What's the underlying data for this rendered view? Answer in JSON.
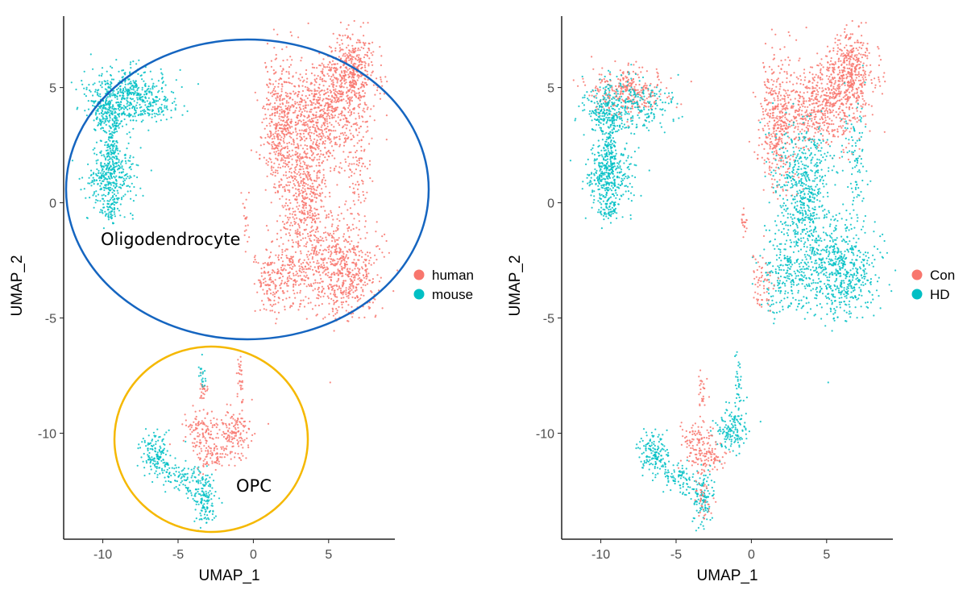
{
  "colors": {
    "a": "#F8766D",
    "b": "#00BFC4",
    "oligo_circle": "#1565C0",
    "opc_circle": "#F5B800"
  },
  "chart_data": [
    {
      "type": "scatter",
      "xlabel": "UMAP_1",
      "ylabel": "UMAP_2",
      "xlim": [
        -12.6,
        9.4
      ],
      "ylim": [
        -14.6,
        8.1
      ],
      "xticks": [
        -10,
        -5,
        0,
        5
      ],
      "yticks": [
        5,
        0,
        -5,
        -10
      ],
      "legend": [
        {
          "label": "human",
          "group": "a"
        },
        {
          "label": "mouse",
          "group": "b"
        }
      ],
      "legend_position": "right",
      "annotations": {
        "oligo": "Oligodendrocyte",
        "opc": "OPC"
      },
      "clusters": [
        [
          "b",
          -8.3,
          4.6,
          1.4,
          0.6,
          500
        ],
        [
          "b",
          -9.7,
          3.8,
          0.6,
          0.5,
          150
        ],
        [
          "b",
          -9.4,
          2.4,
          0.3,
          0.6,
          100
        ],
        [
          "b",
          -9.5,
          1.0,
          0.8,
          0.7,
          350
        ],
        [
          "b",
          -9.4,
          -0.3,
          0.3,
          0.3,
          40
        ],
        [
          "b",
          -6.5,
          4.2,
          0.7,
          0.4,
          40
        ],
        [
          "a",
          6.5,
          5.8,
          0.8,
          0.8,
          400
        ],
        [
          "a",
          4.5,
          4.0,
          1.5,
          1.0,
          700
        ],
        [
          "a",
          1.8,
          3.5,
          0.6,
          1.4,
          350
        ],
        [
          "a",
          3.5,
          1.5,
          1.0,
          1.0,
          300
        ],
        [
          "a",
          3.5,
          -0.8,
          0.9,
          1.0,
          300
        ],
        [
          "a",
          5.8,
          -3.0,
          1.2,
          1.0,
          600
        ],
        [
          "a",
          2.2,
          -3.2,
          0.8,
          0.8,
          200
        ],
        [
          "a",
          0.8,
          -3.5,
          0.4,
          0.8,
          60
        ],
        [
          "a",
          -0.5,
          -0.8,
          0.15,
          0.5,
          20
        ],
        [
          "a",
          7.0,
          1.5,
          0.4,
          1.5,
          100
        ],
        [
          "a",
          -1.3,
          -10.0,
          0.6,
          0.5,
          150
        ],
        [
          "a",
          -3.5,
          -9.8,
          0.6,
          0.4,
          100
        ],
        [
          "a",
          -2.8,
          -11.0,
          0.6,
          0.3,
          80
        ],
        [
          "a",
          -0.9,
          -7.8,
          0.1,
          0.6,
          30
        ],
        [
          "a",
          -3.3,
          -8.2,
          0.15,
          0.4,
          25
        ],
        [
          "b",
          -6.4,
          -11.0,
          0.5,
          0.5,
          150
        ],
        [
          "b",
          -5.0,
          -11.8,
          0.6,
          0.3,
          60
        ],
        [
          "b",
          -3.2,
          -12.8,
          0.4,
          0.6,
          150
        ],
        [
          "b",
          -3.4,
          -7.5,
          0.1,
          0.4,
          20
        ],
        [
          "b",
          -4.4,
          -12.3,
          0.2,
          0.3,
          20
        ]
      ]
    },
    {
      "type": "scatter",
      "xlabel": "UMAP_1",
      "ylabel": "UMAP_2",
      "xlim": [
        -12.6,
        9.4
      ],
      "ylim": [
        -14.6,
        8.1
      ],
      "xticks": [
        -10,
        -5,
        0,
        5
      ],
      "yticks": [
        5,
        0,
        -5,
        -10
      ],
      "legend": [
        {
          "label": "Con",
          "group": "a"
        },
        {
          "label": "HD",
          "group": "b"
        }
      ],
      "legend_position": "right",
      "clusters": [
        [
          "a",
          -8.3,
          4.8,
          1.3,
          0.5,
          300
        ],
        [
          "b",
          -8.3,
          4.2,
          1.4,
          0.7,
          250
        ],
        [
          "b",
          -9.7,
          3.8,
          0.6,
          0.5,
          150
        ],
        [
          "b",
          -9.4,
          2.4,
          0.3,
          0.6,
          100
        ],
        [
          "b",
          -9.5,
          1.0,
          0.8,
          0.7,
          350
        ],
        [
          "b",
          -9.4,
          -0.3,
          0.3,
          0.3,
          40
        ],
        [
          "b",
          -6.5,
          4.2,
          0.7,
          0.4,
          40
        ],
        [
          "a",
          6.5,
          5.8,
          0.8,
          0.8,
          400
        ],
        [
          "a",
          4.5,
          4.2,
          1.5,
          0.9,
          600
        ],
        [
          "a",
          1.8,
          3.5,
          0.6,
          1.4,
          350
        ],
        [
          "b",
          3.5,
          1.5,
          1.0,
          1.0,
          300
        ],
        [
          "b",
          3.5,
          -0.8,
          0.9,
          1.0,
          300
        ],
        [
          "b",
          5.8,
          -3.0,
          1.2,
          1.0,
          600
        ],
        [
          "b",
          2.2,
          -3.2,
          0.8,
          0.8,
          200
        ],
        [
          "a",
          0.8,
          -3.5,
          0.4,
          0.8,
          60
        ],
        [
          "a",
          -0.5,
          -0.8,
          0.15,
          0.5,
          20
        ],
        [
          "b",
          7.0,
          1.5,
          0.4,
          1.5,
          100
        ],
        [
          "b",
          -1.3,
          -9.9,
          0.5,
          0.5,
          150
        ],
        [
          "a",
          -3.6,
          -10.3,
          0.6,
          0.5,
          100
        ],
        [
          "a",
          -2.8,
          -11.0,
          0.6,
          0.3,
          80
        ],
        [
          "b",
          -0.9,
          -7.8,
          0.1,
          0.6,
          30
        ],
        [
          "a",
          -3.3,
          -8.2,
          0.15,
          0.4,
          25
        ],
        [
          "b",
          -6.4,
          -11.0,
          0.5,
          0.5,
          150
        ],
        [
          "b",
          -5.0,
          -11.8,
          0.6,
          0.3,
          60
        ],
        [
          "b",
          -3.2,
          -12.8,
          0.4,
          0.6,
          120
        ],
        [
          "a",
          -3.2,
          -12.8,
          0.3,
          0.5,
          40
        ],
        [
          "b",
          -4.4,
          -12.3,
          0.2,
          0.3,
          20
        ]
      ]
    }
  ]
}
